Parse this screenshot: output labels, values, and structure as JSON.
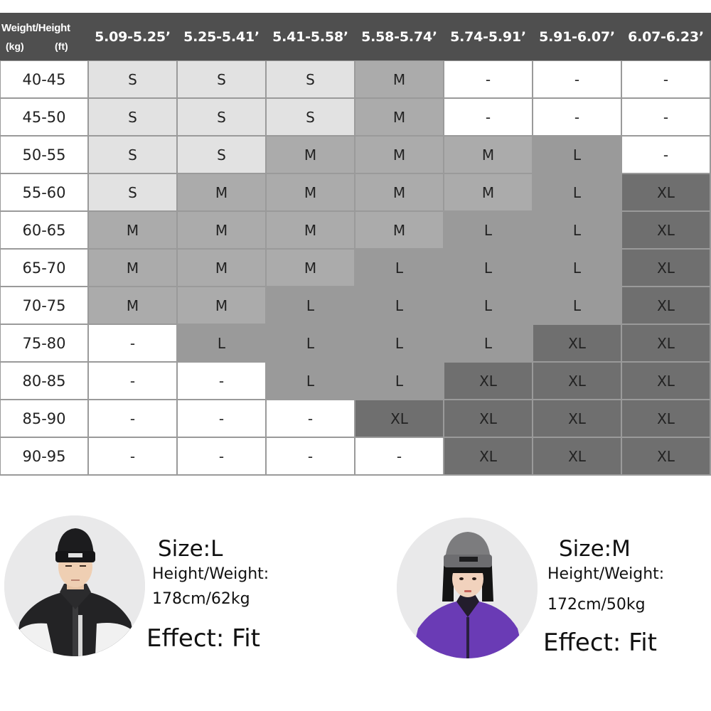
{
  "size_chart": {
    "header": {
      "weight_height": "Weight/Height",
      "kg_unit": "(kg)",
      "ft_unit": "(ft)"
    },
    "height_columns": [
      "5.09-5.25’",
      "5.25-5.41’",
      "5.41-5.58’",
      "5.58-5.74’",
      "5.74-5.91’",
      "5.91-6.07’",
      "6.07-6.23’"
    ],
    "rows": [
      {
        "weight": "40-45",
        "sizes": [
          "S",
          "S",
          "S",
          "M",
          "-",
          "-",
          "-"
        ]
      },
      {
        "weight": "45-50",
        "sizes": [
          "S",
          "S",
          "S",
          "M",
          "-",
          "-",
          "-"
        ]
      },
      {
        "weight": "50-55",
        "sizes": [
          "S",
          "S",
          "M",
          "M",
          "M",
          "L",
          "-"
        ]
      },
      {
        "weight": "55-60",
        "sizes": [
          "S",
          "M",
          "M",
          "M",
          "M",
          "L",
          "XL"
        ]
      },
      {
        "weight": "60-65",
        "sizes": [
          "M",
          "M",
          "M",
          "M",
          "L",
          "L",
          "XL"
        ]
      },
      {
        "weight": "65-70",
        "sizes": [
          "M",
          "M",
          "M",
          "L",
          "L",
          "L",
          "XL"
        ]
      },
      {
        "weight": "70-75",
        "sizes": [
          "M",
          "M",
          "L",
          "L",
          "L",
          "L",
          "XL"
        ]
      },
      {
        "weight": "75-80",
        "sizes": [
          "-",
          "L",
          "L",
          "L",
          "L",
          "XL",
          "XL"
        ]
      },
      {
        "weight": "80-85",
        "sizes": [
          "-",
          "-",
          "L",
          "L",
          "XL",
          "XL",
          "XL"
        ]
      },
      {
        "weight": "85-90",
        "sizes": [
          "-",
          "-",
          "-",
          "XL",
          "XL",
          "XL",
          "XL"
        ]
      },
      {
        "weight": "90-95",
        "sizes": [
          "-",
          "-",
          "-",
          "-",
          "XL",
          "XL",
          "XL"
        ]
      }
    ],
    "colors": {
      "header_bg": "#4f4f4f",
      "S": "#e2e2e2",
      "M": "#ababab",
      "L": "#9a9a9a",
      "XL": "#6f6f6f",
      "-": "#ffffff"
    }
  },
  "models": [
    {
      "size": "Size:L",
      "hw_label": "Height/Weight:",
      "hw_value": "178cm/62kg",
      "effect": "Effect: Fit",
      "photo": {
        "icon": "male-model-photo",
        "hat_color": "#1c1c1e",
        "jacket_color": "#232325"
      }
    },
    {
      "size": "Size:M",
      "hw_label": "Height/Weight:",
      "hw_value": "172cm/50kg",
      "effect": "Effect: Fit",
      "photo": {
        "icon": "female-model-photo",
        "hat_color": "#7c7c7e",
        "jacket_color": "#6a3bb5"
      }
    }
  ]
}
